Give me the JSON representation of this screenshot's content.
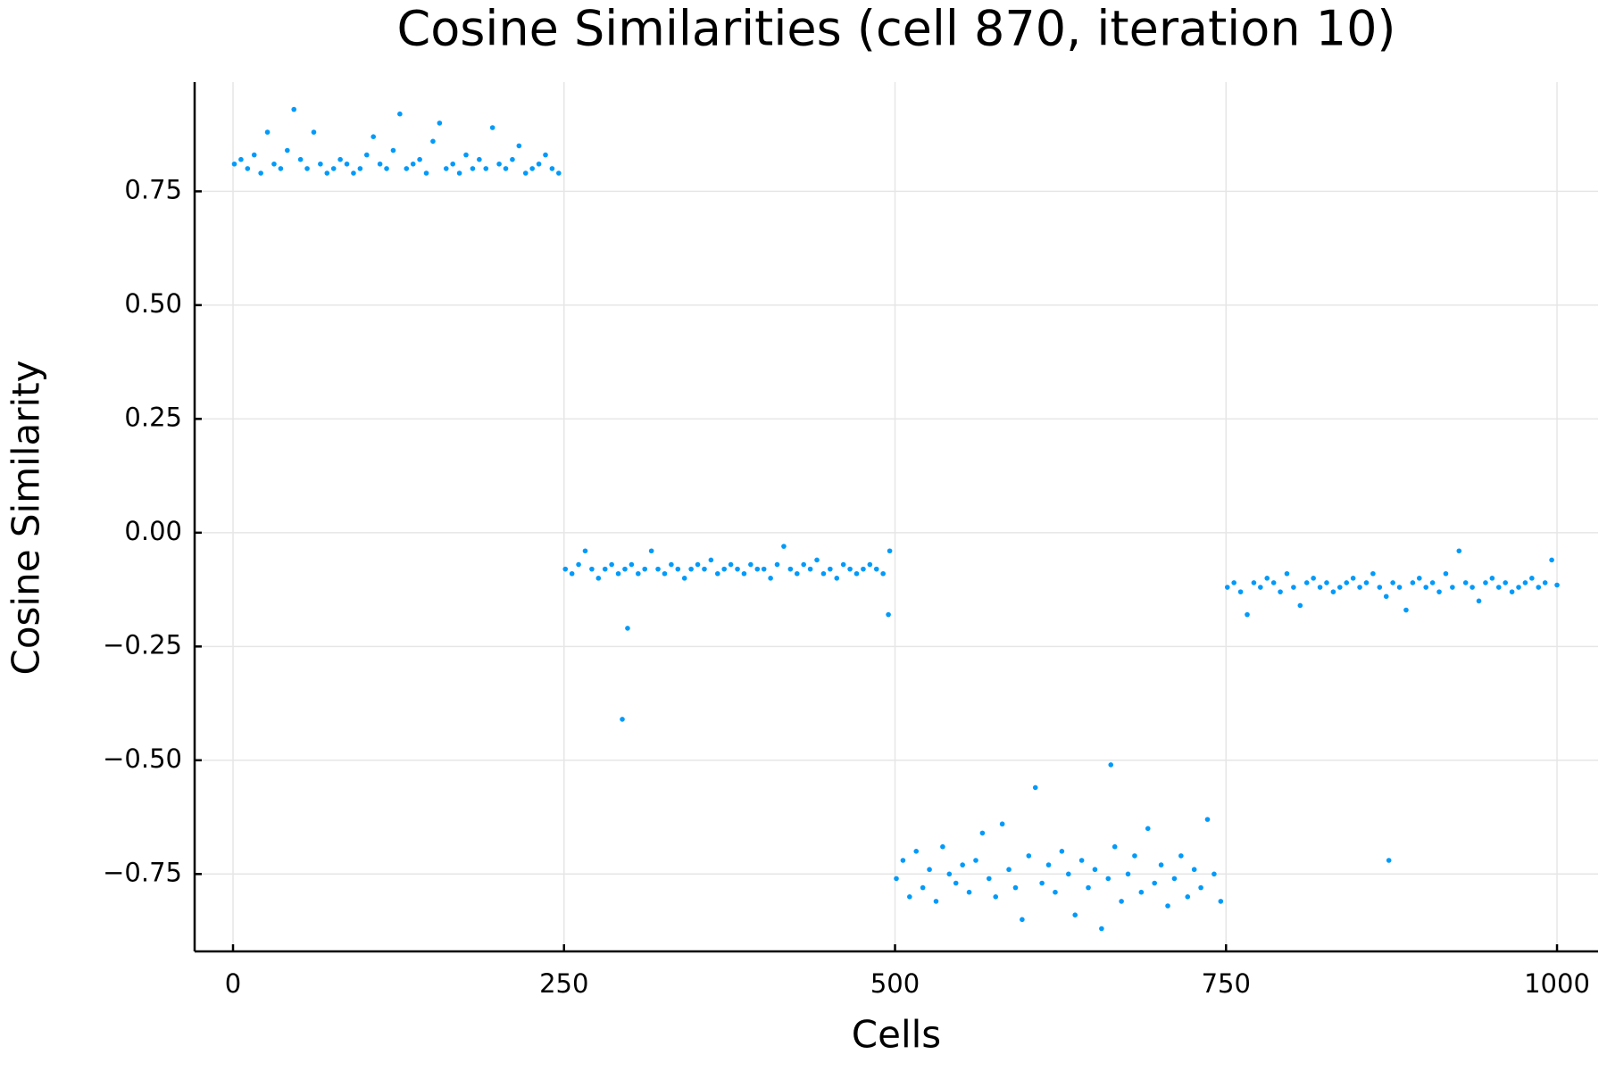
{
  "chart_data": {
    "type": "scatter",
    "title": "Cosine Similarities (cell 870, iteration 10)",
    "x_label": "Cells",
    "y_label": "Cosine Similarity",
    "color": "#009afa",
    "grid": true,
    "xlim": [
      -29,
      1031
    ],
    "ylim": [
      -0.92,
      0.99
    ],
    "xticks": [
      0,
      250,
      500,
      750,
      1000
    ],
    "yticks": [
      {
        "value": -0.75,
        "label": "−0.75"
      },
      {
        "value": -0.5,
        "label": "−0.50"
      },
      {
        "value": -0.25,
        "label": "−0.25"
      },
      {
        "value": 0,
        "label": "0.00"
      },
      {
        "value": 0.25,
        "label": "0.25"
      },
      {
        "value": 0.5,
        "label": "0.50"
      },
      {
        "value": 0.75,
        "label": "0.75"
      }
    ],
    "x": [
      1,
      6,
      11,
      16,
      21,
      26,
      31,
      36,
      41,
      46,
      51,
      56,
      61,
      66,
      71,
      76,
      81,
      86,
      91,
      96,
      101,
      106,
      111,
      116,
      121,
      126,
      131,
      136,
      141,
      146,
      151,
      156,
      161,
      166,
      171,
      176,
      181,
      186,
      191,
      196,
      201,
      206,
      211,
      216,
      221,
      226,
      231,
      236,
      241,
      246,
      251,
      256,
      261,
      266,
      271,
      276,
      281,
      286,
      291,
      296,
      301,
      306,
      311,
      316,
      321,
      326,
      331,
      336,
      341,
      346,
      351,
      356,
      361,
      366,
      371,
      376,
      381,
      386,
      391,
      396,
      401,
      406,
      411,
      416,
      421,
      426,
      431,
      436,
      441,
      446,
      451,
      456,
      461,
      466,
      471,
      476,
      481,
      486,
      491,
      496,
      501,
      506,
      511,
      516,
      521,
      526,
      531,
      536,
      541,
      546,
      551,
      556,
      561,
      566,
      571,
      576,
      581,
      586,
      591,
      596,
      601,
      606,
      611,
      616,
      621,
      626,
      631,
      636,
      641,
      646,
      651,
      656,
      661,
      666,
      671,
      676,
      681,
      686,
      691,
      696,
      701,
      706,
      711,
      716,
      721,
      726,
      731,
      736,
      741,
      746,
      751,
      756,
      761,
      766,
      771,
      776,
      781,
      786,
      791,
      796,
      801,
      806,
      811,
      816,
      821,
      826,
      831,
      836,
      841,
      846,
      851,
      856,
      861,
      866,
      871,
      876,
      881,
      886,
      891,
      896,
      901,
      906,
      911,
      916,
      921,
      926,
      931,
      936,
      941,
      946,
      951,
      956,
      961,
      966,
      971,
      976,
      981,
      986,
      991,
      996,
      294,
      298,
      495,
      663,
      873,
      1000
    ],
    "values": [
      0.81,
      0.82,
      0.8,
      0.83,
      0.79,
      0.88,
      0.81,
      0.8,
      0.84,
      0.93,
      0.82,
      0.8,
      0.88,
      0.81,
      0.79,
      0.8,
      0.82,
      0.81,
      0.79,
      0.8,
      0.83,
      0.87,
      0.81,
      0.8,
      0.84,
      0.92,
      0.8,
      0.81,
      0.82,
      0.79,
      0.86,
      0.9,
      0.8,
      0.81,
      0.79,
      0.83,
      0.8,
      0.82,
      0.8,
      0.89,
      0.81,
      0.8,
      0.82,
      0.85,
      0.79,
      0.8,
      0.81,
      0.83,
      0.8,
      0.79,
      -0.08,
      -0.09,
      -0.07,
      -0.04,
      -0.08,
      -0.1,
      -0.08,
      -0.07,
      -0.09,
      -0.08,
      -0.07,
      -0.09,
      -0.08,
      -0.04,
      -0.08,
      -0.09,
      -0.07,
      -0.08,
      -0.1,
      -0.08,
      -0.07,
      -0.08,
      -0.06,
      -0.09,
      -0.08,
      -0.07,
      -0.08,
      -0.09,
      -0.07,
      -0.08,
      -0.08,
      -0.1,
      -0.07,
      -0.03,
      -0.08,
      -0.09,
      -0.07,
      -0.08,
      -0.06,
      -0.09,
      -0.08,
      -0.1,
      -0.07,
      -0.08,
      -0.09,
      -0.08,
      -0.07,
      -0.08,
      -0.09,
      -0.04,
      -0.76,
      -0.72,
      -0.8,
      -0.7,
      -0.78,
      -0.74,
      -0.81,
      -0.69,
      -0.75,
      -0.77,
      -0.73,
      -0.79,
      -0.72,
      -0.66,
      -0.76,
      -0.8,
      -0.64,
      -0.74,
      -0.78,
      -0.85,
      -0.71,
      -0.56,
      -0.77,
      -0.73,
      -0.79,
      -0.7,
      -0.75,
      -0.84,
      -0.72,
      -0.78,
      -0.74,
      -0.87,
      -0.76,
      -0.69,
      -0.81,
      -0.75,
      -0.71,
      -0.79,
      -0.65,
      -0.77,
      -0.73,
      -0.82,
      -0.76,
      -0.71,
      -0.8,
      -0.74,
      -0.78,
      -0.63,
      -0.75,
      -0.81,
      -0.12,
      -0.11,
      -0.13,
      -0.18,
      -0.11,
      -0.12,
      -0.1,
      -0.11,
      -0.13,
      -0.09,
      -0.12,
      -0.16,
      -0.11,
      -0.1,
      -0.12,
      -0.11,
      -0.13,
      -0.12,
      -0.11,
      -0.1,
      -0.12,
      -0.11,
      -0.09,
      -0.12,
      -0.14,
      -0.11,
      -0.12,
      -0.17,
      -0.11,
      -0.1,
      -0.12,
      -0.11,
      -0.13,
      -0.09,
      -0.12,
      -0.04,
      -0.11,
      -0.12,
      -0.15,
      -0.11,
      -0.1,
      -0.12,
      -0.11,
      -0.13,
      -0.12,
      -0.11,
      -0.1,
      -0.12,
      -0.11,
      -0.06,
      -0.41,
      -0.21,
      -0.18,
      -0.51,
      -0.72,
      -0.115
    ]
  }
}
